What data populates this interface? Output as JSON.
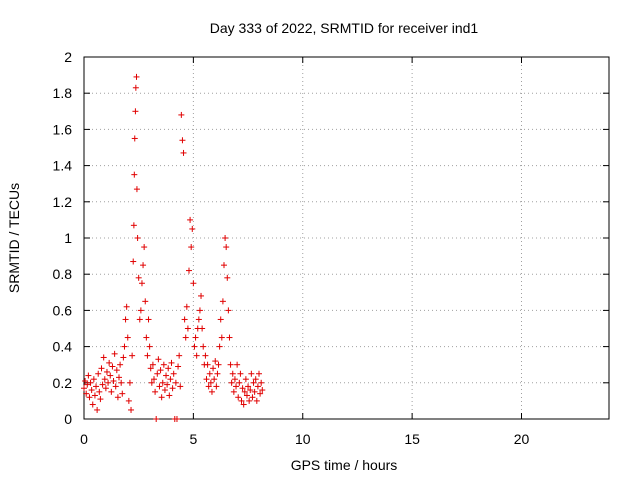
{
  "chart_data": {
    "type": "scatter",
    "title": "Day 333 of 2022, SRMTID for receiver ind1",
    "xlabel": "GPS time / hours",
    "ylabel": "SRMTID / TECUs",
    "xlim": [
      0,
      24
    ],
    "ylim": [
      0,
      2
    ],
    "xticks": [
      0,
      5,
      10,
      15,
      20
    ],
    "yticks": [
      0,
      0.2,
      0.4,
      0.6,
      0.8,
      1,
      1.2,
      1.4,
      1.6,
      1.8,
      2
    ],
    "xtick_labels": [
      "0",
      "5",
      "10",
      "15",
      "20"
    ],
    "ytick_labels": [
      "0",
      "0.2",
      "0.4",
      "0.6",
      "0.8",
      "1",
      "1.2",
      "1.4",
      "1.6",
      "1.8",
      "2"
    ],
    "grid": true,
    "marker": "+",
    "color": "#e00000",
    "series": [
      {
        "name": "SRMTID",
        "points": [
          [
            0.0,
            0.17
          ],
          [
            0.05,
            0.21
          ],
          [
            0.1,
            0.14
          ],
          [
            0.15,
            0.19
          ],
          [
            0.2,
            0.24
          ],
          [
            0.25,
            0.12
          ],
          [
            0.3,
            0.2
          ],
          [
            0.35,
            0.16
          ],
          [
            0.4,
            0.08
          ],
          [
            0.45,
            0.22
          ],
          [
            0.5,
            0.13
          ],
          [
            0.55,
            0.18
          ],
          [
            0.6,
            0.05
          ],
          [
            0.65,
            0.25
          ],
          [
            0.7,
            0.15
          ],
          [
            0.75,
            0.11
          ],
          [
            0.8,
            0.28
          ],
          [
            0.85,
            0.19
          ],
          [
            0.9,
            0.34
          ],
          [
            0.95,
            0.22
          ],
          [
            1.0,
            0.17
          ],
          [
            1.05,
            0.26
          ],
          [
            1.1,
            0.2
          ],
          [
            1.15,
            0.31
          ],
          [
            1.2,
            0.24
          ],
          [
            1.25,
            0.15
          ],
          [
            1.3,
            0.29
          ],
          [
            1.35,
            0.21
          ],
          [
            1.4,
            0.36
          ],
          [
            1.45,
            0.18
          ],
          [
            1.5,
            0.27
          ],
          [
            1.55,
            0.12
          ],
          [
            1.6,
            0.23
          ],
          [
            1.65,
            0.3
          ],
          [
            1.7,
            0.2
          ],
          [
            1.75,
            0.14
          ],
          [
            1.8,
            0.34
          ],
          [
            1.85,
            0.4
          ],
          [
            1.9,
            0.55
          ],
          [
            1.95,
            0.62
          ],
          [
            2.0,
            0.45
          ],
          [
            2.05,
            0.1
          ],
          [
            2.1,
            0.2
          ],
          [
            2.15,
            0.05
          ],
          [
            2.2,
            0.35
          ],
          [
            2.25,
            0.87
          ],
          [
            2.28,
            1.07
          ],
          [
            2.3,
            1.35
          ],
          [
            2.32,
            1.55
          ],
          [
            2.35,
            1.7
          ],
          [
            2.37,
            1.83
          ],
          [
            2.4,
            1.89
          ],
          [
            2.42,
            1.27
          ],
          [
            2.45,
            1.0
          ],
          [
            2.5,
            0.78
          ],
          [
            2.55,
            0.55
          ],
          [
            2.6,
            0.6
          ],
          [
            2.65,
            0.75
          ],
          [
            2.7,
            0.85
          ],
          [
            2.75,
            0.95
          ],
          [
            2.8,
            0.65
          ],
          [
            2.85,
            0.45
          ],
          [
            2.9,
            0.35
          ],
          [
            2.95,
            0.55
          ],
          [
            3.0,
            0.4
          ],
          [
            3.05,
            0.28
          ],
          [
            3.1,
            0.2
          ],
          [
            3.15,
            0.3
          ],
          [
            3.2,
            0.22
          ],
          [
            3.25,
            0.15
          ],
          [
            3.3,
            0.0
          ],
          [
            3.35,
            0.25
          ],
          [
            3.4,
            0.33
          ],
          [
            3.45,
            0.18
          ],
          [
            3.5,
            0.27
          ],
          [
            3.55,
            0.12
          ],
          [
            3.6,
            0.2
          ],
          [
            3.65,
            0.3
          ],
          [
            3.7,
            0.16
          ],
          [
            3.75,
            0.24
          ],
          [
            3.8,
            0.19
          ],
          [
            3.85,
            0.28
          ],
          [
            3.9,
            0.13
          ],
          [
            3.95,
            0.22
          ],
          [
            4.0,
            0.31
          ],
          [
            4.05,
            0.17
          ],
          [
            4.1,
            0.25
          ],
          [
            4.15,
            0.0
          ],
          [
            4.2,
            0.2
          ],
          [
            4.25,
            0.0
          ],
          [
            4.3,
            0.29
          ],
          [
            4.35,
            0.35
          ],
          [
            4.4,
            0.18
          ],
          [
            4.45,
            1.68
          ],
          [
            4.5,
            1.54
          ],
          [
            4.55,
            1.47
          ],
          [
            4.6,
            0.55
          ],
          [
            4.65,
            0.45
          ],
          [
            4.7,
            0.62
          ],
          [
            4.75,
            0.5
          ],
          [
            4.8,
            0.82
          ],
          [
            4.85,
            1.1
          ],
          [
            4.9,
            0.95
          ],
          [
            4.95,
            1.05
          ],
          [
            5.0,
            0.75
          ],
          [
            5.05,
            0.4
          ],
          [
            5.1,
            0.45
          ],
          [
            5.15,
            0.35
          ],
          [
            5.2,
            0.5
          ],
          [
            5.25,
            0.55
          ],
          [
            5.3,
            0.6
          ],
          [
            5.35,
            0.68
          ],
          [
            5.4,
            0.5
          ],
          [
            5.45,
            0.4
          ],
          [
            5.5,
            0.3
          ],
          [
            5.55,
            0.35
          ],
          [
            5.6,
            0.22
          ],
          [
            5.65,
            0.3
          ],
          [
            5.7,
            0.18
          ],
          [
            5.75,
            0.25
          ],
          [
            5.8,
            0.2
          ],
          [
            5.85,
            0.15
          ],
          [
            5.9,
            0.28
          ],
          [
            5.95,
            0.22
          ],
          [
            6.0,
            0.32
          ],
          [
            6.05,
            0.18
          ],
          [
            6.1,
            0.25
          ],
          [
            6.15,
            0.3
          ],
          [
            6.2,
            0.4
          ],
          [
            6.25,
            0.55
          ],
          [
            6.3,
            0.45
          ],
          [
            6.35,
            0.65
          ],
          [
            6.4,
            0.85
          ],
          [
            6.45,
            1.0
          ],
          [
            6.5,
            0.95
          ],
          [
            6.55,
            0.78
          ],
          [
            6.6,
            0.6
          ],
          [
            6.65,
            0.45
          ],
          [
            6.7,
            0.3
          ],
          [
            6.75,
            0.2
          ],
          [
            6.8,
            0.25
          ],
          [
            6.85,
            0.15
          ],
          [
            6.9,
            0.22
          ],
          [
            6.95,
            0.18
          ],
          [
            7.0,
            0.3
          ],
          [
            7.05,
            0.12
          ],
          [
            7.1,
            0.2
          ],
          [
            7.15,
            0.25
          ],
          [
            7.2,
            0.1
          ],
          [
            7.25,
            0.17
          ],
          [
            7.3,
            0.08
          ],
          [
            7.35,
            0.15
          ],
          [
            7.4,
            0.22
          ],
          [
            7.45,
            0.13
          ],
          [
            7.5,
            0.18
          ],
          [
            7.55,
            0.1
          ],
          [
            7.6,
            0.16
          ],
          [
            7.65,
            0.25
          ],
          [
            7.7,
            0.12
          ],
          [
            7.75,
            0.2
          ],
          [
            7.8,
            0.15
          ],
          [
            7.85,
            0.22
          ],
          [
            7.9,
            0.1
          ],
          [
            7.95,
            0.18
          ],
          [
            8.0,
            0.25
          ],
          [
            8.05,
            0.14
          ],
          [
            8.1,
            0.2
          ],
          [
            8.15,
            0.16
          ]
        ]
      }
    ]
  }
}
